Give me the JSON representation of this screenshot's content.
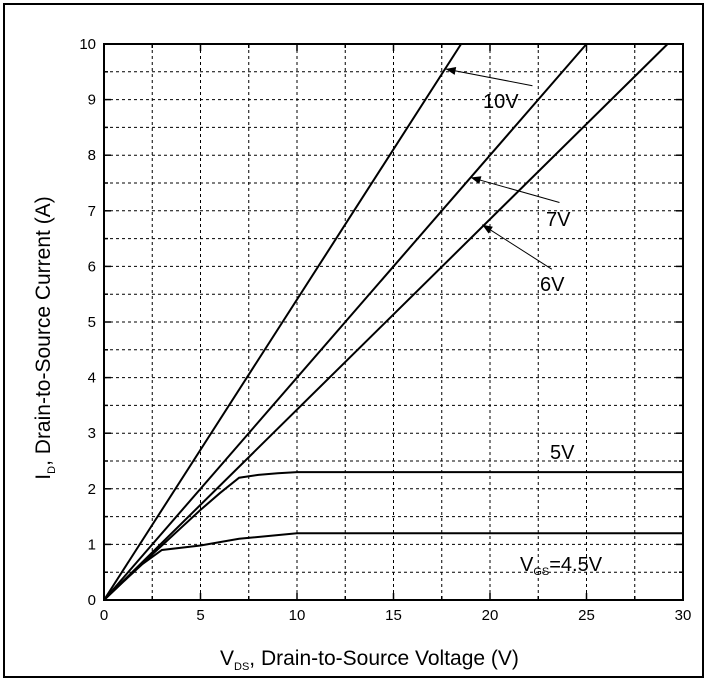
{
  "chart_data": {
    "type": "line",
    "xlabel_main": "V",
    "xlabel_sub": "DS",
    "xlabel_rest": ", Drain-to-Source Voltage (V)",
    "ylabel_main": "I",
    "ylabel_sub": "D",
    "ylabel_rest": ", Drain-to-Source Current (A)",
    "xlim": [
      0,
      30
    ],
    "ylim": [
      0,
      10
    ],
    "x_ticks": [
      "0",
      "5",
      "10",
      "15",
      "20",
      "25",
      "30"
    ],
    "y_ticks": [
      "0",
      "1",
      "2",
      "3",
      "4",
      "5",
      "6",
      "7",
      "8",
      "9",
      "10"
    ],
    "grid": true,
    "series": [
      {
        "name": "10V",
        "x": [
          0,
          18.5
        ],
        "y": [
          0,
          10
        ]
      },
      {
        "name": "7V",
        "x": [
          0,
          25.0
        ],
        "y": [
          0,
          10
        ]
      },
      {
        "name": "6V",
        "x": [
          0,
          29.2
        ],
        "y": [
          0,
          10
        ]
      },
      {
        "name": "5V",
        "x": [
          0,
          1,
          2,
          3,
          4,
          5,
          6,
          7,
          8,
          9,
          10,
          30
        ],
        "y": [
          0,
          0.33,
          0.66,
          0.98,
          1.3,
          1.62,
          1.92,
          2.2,
          2.25,
          2.28,
          2.3,
          2.3
        ]
      },
      {
        "name": "4.5V",
        "x": [
          0,
          1,
          2,
          3,
          5,
          7,
          10,
          30
        ],
        "y": [
          0,
          0.33,
          0.65,
          0.9,
          0.98,
          1.1,
          1.2,
          1.2
        ]
      }
    ],
    "labels": {
      "v10": "10V",
      "v7": "7V",
      "v6": "6V",
      "v5": "5V",
      "vgs_main": "V",
      "vgs_sub": "GS",
      "vgs_rest": "=4.5V"
    }
  }
}
